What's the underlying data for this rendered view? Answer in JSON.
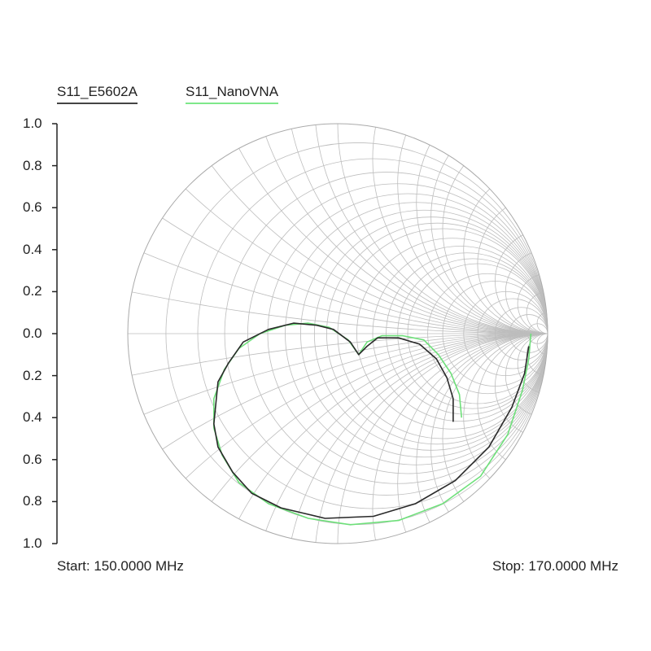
{
  "chart_data": {
    "type": "smith",
    "legend": [
      {
        "name": "S11_E5602A",
        "color": "#2a2a2a"
      },
      {
        "name": "S11_NanoVNA",
        "color": "#6ee07a"
      }
    ],
    "legend_placement": "top-left",
    "y_ticks": [
      "1.0",
      "0.8",
      "0.6",
      "0.4",
      "0.2",
      "0.0",
      "0.2",
      "0.4",
      "0.6",
      "0.8",
      "1.0"
    ],
    "start_label": "Start: 150.0000 MHz",
    "stop_label": "Stop: 170.0000 MHz",
    "grid_values": [
      0.1,
      0.2,
      0.3,
      0.4,
      0.5,
      0.6,
      0.7,
      0.8,
      0.9,
      1,
      1.2,
      1.4,
      1.6,
      1.8,
      2,
      2.5,
      3,
      4,
      5,
      7,
      10,
      20
    ],
    "series": [
      {
        "name": "S11_E5602A",
        "color": "#2a2a2a",
        "gamma": [
          [
            0.55,
            -0.42
          ],
          [
            0.55,
            -0.31
          ],
          [
            0.52,
            -0.21
          ],
          [
            0.47,
            -0.12
          ],
          [
            0.39,
            -0.05
          ],
          [
            0.29,
            -0.02
          ],
          [
            0.19,
            -0.02
          ],
          [
            0.14,
            -0.06
          ],
          [
            0.1,
            -0.1
          ],
          [
            0.06,
            -0.04
          ],
          [
            -0.02,
            0.02
          ],
          [
            -0.1,
            0.04
          ],
          [
            -0.21,
            0.05
          ],
          [
            -0.33,
            0.02
          ],
          [
            -0.45,
            -0.04
          ],
          [
            -0.52,
            -0.14
          ],
          [
            -0.57,
            -0.23
          ],
          [
            -0.59,
            -0.43
          ],
          [
            -0.57,
            -0.54
          ],
          [
            -0.5,
            -0.66
          ],
          [
            -0.41,
            -0.76
          ],
          [
            -0.27,
            -0.83
          ],
          [
            -0.06,
            -0.88
          ],
          [
            0.17,
            -0.87
          ],
          [
            0.37,
            -0.81
          ],
          [
            0.56,
            -0.7
          ],
          [
            0.72,
            -0.54
          ],
          [
            0.83,
            -0.35
          ],
          [
            0.89,
            -0.19
          ],
          [
            0.91,
            -0.06
          ]
        ]
      },
      {
        "name": "S11_NanoVNA",
        "color": "#6ee07a",
        "gamma": [
          [
            0.59,
            -0.4
          ],
          [
            0.58,
            -0.29
          ],
          [
            0.54,
            -0.19
          ],
          [
            0.48,
            -0.1
          ],
          [
            0.41,
            -0.03
          ],
          [
            0.31,
            -0.01
          ],
          [
            0.21,
            -0.01
          ],
          [
            0.14,
            -0.04
          ],
          [
            0.1,
            -0.1
          ],
          [
            0.05,
            -0.03
          ],
          [
            -0.04,
            0.03
          ],
          [
            -0.14,
            0.05
          ],
          [
            -0.25,
            0.04
          ],
          [
            -0.37,
            0.0
          ],
          [
            -0.47,
            -0.07
          ],
          [
            -0.54,
            -0.17
          ],
          [
            -0.59,
            -0.31
          ],
          [
            -0.59,
            -0.45
          ],
          [
            -0.55,
            -0.58
          ],
          [
            -0.47,
            -0.71
          ],
          [
            -0.33,
            -0.81
          ],
          [
            -0.14,
            -0.88
          ],
          [
            0.06,
            -0.91
          ],
          [
            0.29,
            -0.89
          ],
          [
            0.5,
            -0.81
          ],
          [
            0.68,
            -0.68
          ],
          [
            0.81,
            -0.48
          ],
          [
            0.88,
            -0.27
          ],
          [
            0.91,
            -0.12
          ],
          [
            0.92,
            0.0
          ]
        ]
      }
    ]
  }
}
